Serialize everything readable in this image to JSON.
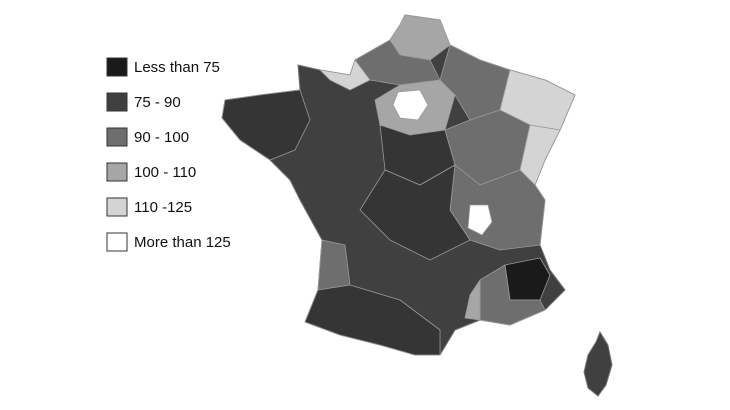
{
  "legend": {
    "items": [
      {
        "label": "Less than 75",
        "color": "#1a1a1a"
      },
      {
        "label": "75 - 90",
        "color": "#404040"
      },
      {
        "label": "90 - 100",
        "color": "#6e6e6e"
      },
      {
        "label": "100 - 110",
        "color": "#a6a6a6"
      },
      {
        "label": "110 -125",
        "color": "#d4d4d4"
      },
      {
        "label": "More than 125",
        "color": "#ffffff"
      }
    ]
  }
}
